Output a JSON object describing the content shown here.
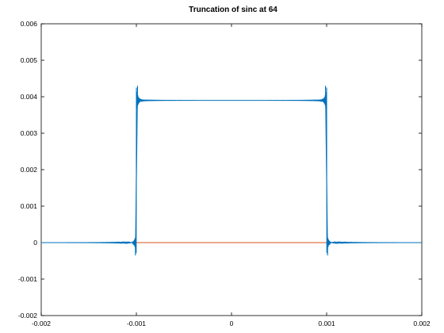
{
  "chart_data": {
    "type": "line",
    "title": "Truncation of sinc at 64",
    "xlabel": "",
    "ylabel": "",
    "xlim": [
      -0.002,
      0.002
    ],
    "ylim": [
      -0.002,
      0.006
    ],
    "x_ticks": [
      "-0.002",
      "-0.001",
      "0",
      "0.001",
      "0.002"
    ],
    "y_ticks": [
      "-0.002",
      "-0.001",
      "0",
      "0.001",
      "0.002",
      "0.003",
      "0.004",
      "0.005",
      "0.006"
    ],
    "x_tick_values": [
      -0.002,
      -0.001,
      0,
      0.001,
      0.002
    ],
    "y_tick_values": [
      -0.002,
      -0.001,
      0,
      0.001,
      0.002,
      0.003,
      0.004,
      0.005,
      0.006
    ],
    "grid": false,
    "series": [
      {
        "color": "#0072bd",
        "plateau_level": 0.0039,
        "edges": [
          -0.001,
          0.001
        ],
        "overshoot_peak": 0.0043,
        "undershoot_min": -0.00035
      },
      {
        "color": "#d95319",
        "x": [
          -0.002,
          0.002
        ],
        "y": [
          0,
          0
        ]
      }
    ]
  }
}
